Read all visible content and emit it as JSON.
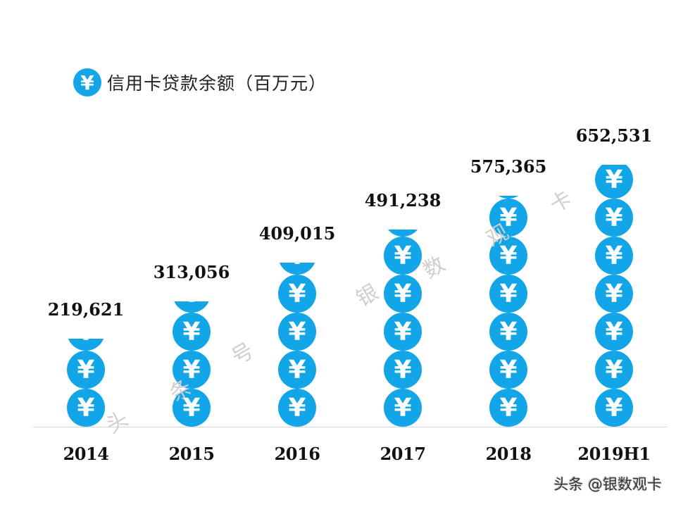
{
  "chart_data": {
    "type": "bar",
    "style": "pictograph-coin-stacks",
    "title": "信用卡贷款余额（百万元）",
    "legend": [
      {
        "label": "信用卡贷款余额（百万元）",
        "icon": "yuan-coin-icon",
        "color": "#12a5e8"
      }
    ],
    "categories": [
      "2014",
      "2015",
      "2016",
      "2017",
      "2018",
      "2019H1"
    ],
    "series": [
      {
        "name": "信用卡贷款余额（百万元）",
        "values": [
          219621,
          313056,
          409015,
          491238,
          575365,
          652531
        ]
      }
    ],
    "value_labels": [
      "219,621",
      "313,056",
      "409,015",
      "491,238",
      "575,365",
      "652,531"
    ],
    "xlabel": "",
    "ylabel": "",
    "ylim": [
      0,
      652531
    ],
    "grid": false,
    "legend_position": "top-left"
  },
  "colors": {
    "bar": "#12a5e8",
    "text": "#111111",
    "axis": "#d6d6d6"
  },
  "icon": {
    "coin_glyph": "¥"
  },
  "watermark": [
    "头",
    "条",
    "号",
    "银",
    "数",
    "观",
    "卡"
  ],
  "credit": "头条 @银数观卡"
}
